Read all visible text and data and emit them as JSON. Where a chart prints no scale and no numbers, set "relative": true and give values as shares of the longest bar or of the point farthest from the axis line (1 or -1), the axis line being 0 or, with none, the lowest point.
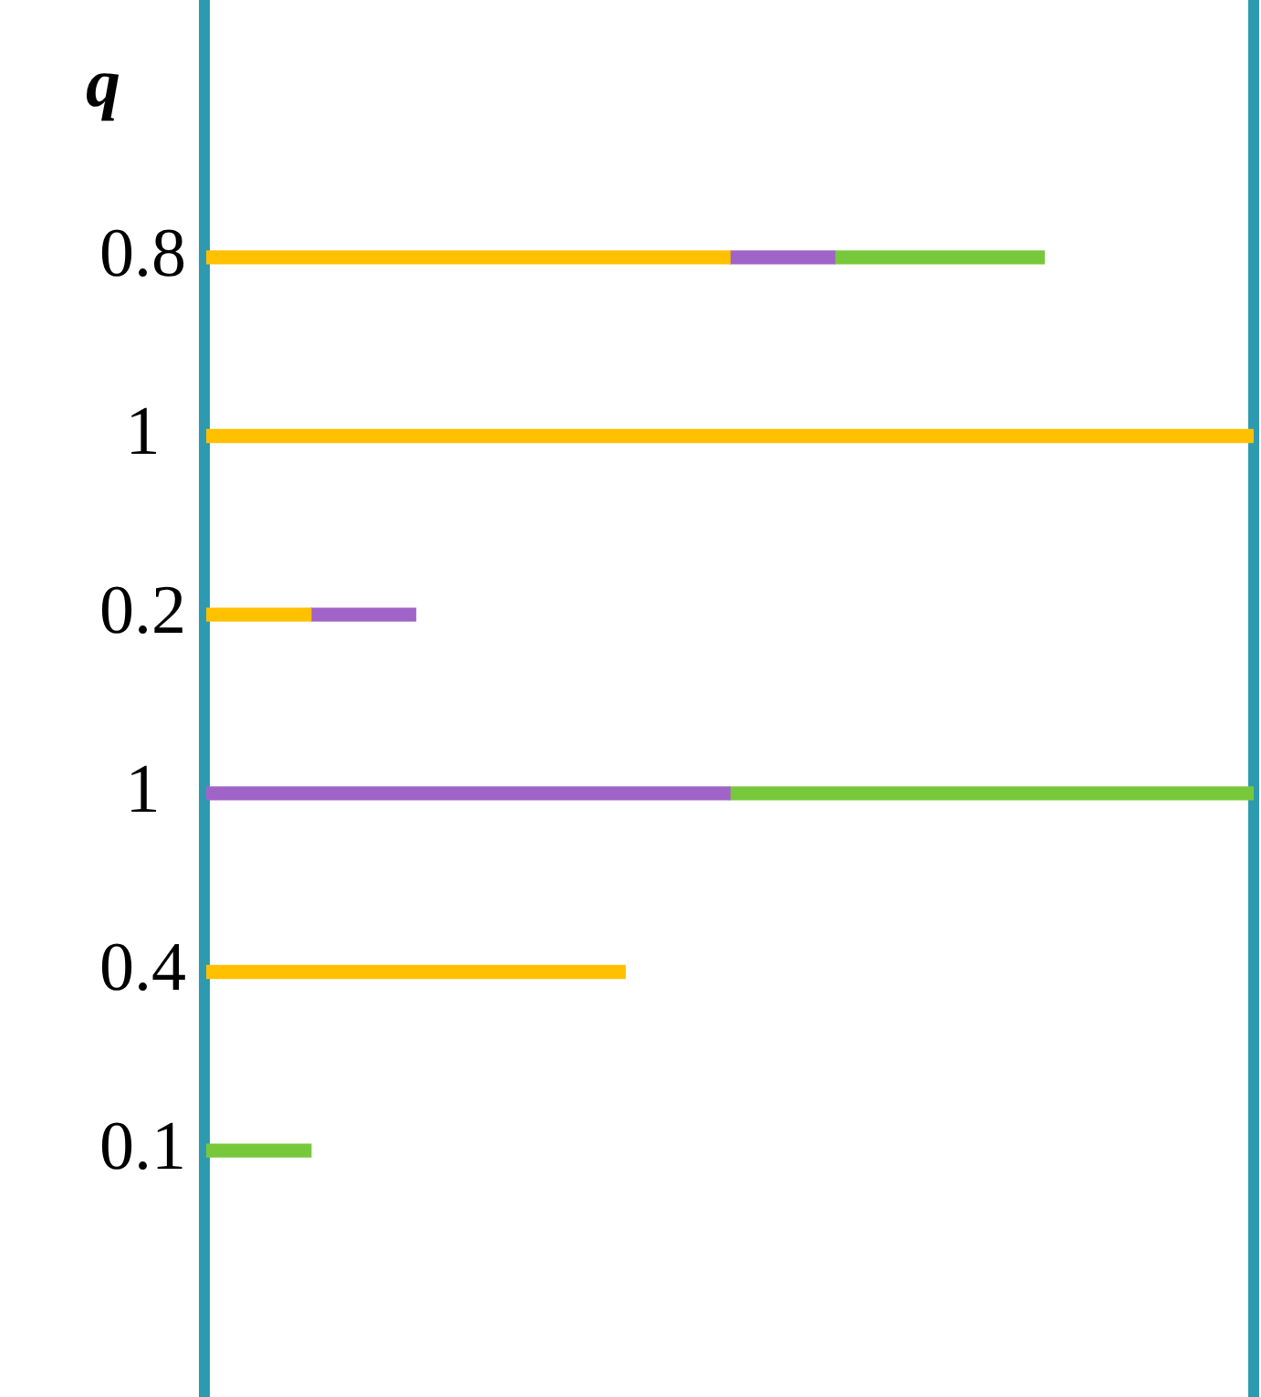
{
  "chart_data": {
    "type": "bar",
    "orientation": "horizontal",
    "stacked": true,
    "relative": true,
    "title": "q",
    "categories": [
      "0.8",
      "1",
      "0.2",
      "1",
      "0.4",
      "0.1"
    ],
    "series": [
      {
        "color": "#ffc000",
        "values": [
          0.5,
          1,
          0.1,
          null,
          0.4,
          null
        ]
      },
      {
        "color": "#a064c8",
        "values": [
          0.1,
          null,
          0.1,
          0.5,
          null,
          null
        ]
      },
      {
        "color": "#78c83c",
        "values": [
          0.2,
          null,
          null,
          0.5,
          null,
          0.1
        ]
      }
    ]
  }
}
